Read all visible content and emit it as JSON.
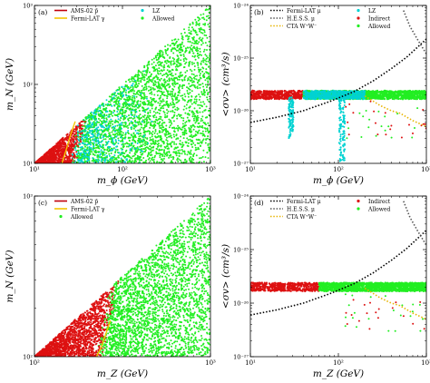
{
  "chart_data": [
    {
      "panel": "(a)",
      "type": "scatter",
      "xlabel": "m_ϕ (GeV)",
      "ylabel": "m_N (GeV)",
      "xscale": "log",
      "yscale": "log",
      "xlim": [
        10,
        1000
      ],
      "ylim": [
        10,
        1000
      ],
      "x_ticks": [
        {
          "v": 10,
          "label": "10¹"
        },
        {
          "v": 100,
          "label": "10²"
        },
        {
          "v": 1000,
          "label": "10³"
        }
      ],
      "y_ticks": [
        {
          "v": 10,
          "label": "10¹"
        },
        {
          "v": 100,
          "label": "10²"
        },
        {
          "v": 1000,
          "label": "10³"
        }
      ],
      "legend": {
        "placement": "top-left",
        "columns": 2
      },
      "series": [
        {
          "name": "AMS-02 p̄",
          "kind": "line",
          "color": "#c0000a",
          "x": [],
          "y": []
        },
        {
          "name": "Fermi-LAT γ",
          "kind": "line",
          "color": "#f5c400",
          "x": [
            20.5,
            23.0,
            26.0,
            29.0
          ],
          "y": [
            10.0,
            15.0,
            24.0,
            34.0
          ]
        },
        {
          "name": "LZ",
          "kind": "scatter",
          "color": "#00d2d2",
          "x": [],
          "y": []
        },
        {
          "name": "Allowed",
          "kind": "scatter",
          "color": "#22ee22",
          "x": [],
          "y": []
        }
      ],
      "regions": [
        {
          "series": "Indirect excluded (red points)",
          "color": "#dd1111",
          "x_range": [
            10,
            32
          ],
          "condition": "m_N < m_phi"
        },
        {
          "series": "LZ",
          "color": "#00d2d2",
          "x_range": [
            32,
            230
          ],
          "condition": "m_N < m_phi",
          "mixed_with": "Allowed"
        },
        {
          "series": "Allowed",
          "color": "#22ee22",
          "x_range": [
            25,
            1000
          ],
          "condition": "m_N < m_phi"
        }
      ]
    },
    {
      "panel": "(b)",
      "type": "scatter",
      "xlabel": "m_ϕ (GeV)",
      "ylabel": "<σv> (cm³/s)",
      "xscale": "log",
      "yscale": "log",
      "xlim": [
        10,
        1000
      ],
      "ylim": [
        1e-27,
        1e-24
      ],
      "x_ticks": [
        {
          "v": 10,
          "label": "10¹"
        },
        {
          "v": 100,
          "label": "10²"
        },
        {
          "v": 1000,
          "label": "10³"
        }
      ],
      "y_ticks": [
        {
          "v": 1e-24,
          "label": "10⁻²⁴"
        },
        {
          "v": 1e-25,
          "label": "10⁻²⁵"
        },
        {
          "v": 1e-26,
          "label": "10⁻²⁶"
        },
        {
          "v": 1e-27,
          "label": "10⁻²⁷"
        }
      ],
      "legend": {
        "placement": "top-left",
        "columns": 2
      },
      "series": [
        {
          "name": "Fermi-LAT μ",
          "kind": "line",
          "style": "dotted",
          "color": "#000000",
          "x": [
            10,
            20,
            40,
            80,
            150,
            250,
            400,
            600,
            1000
          ],
          "y": [
            6e-27,
            7.5e-27,
            1e-26,
            1.5e-26,
            2.3e-26,
            3.7e-26,
            6.3e-26,
            1.05e-25,
            2.3e-25
          ]
        },
        {
          "name": "H.E.S.S. μ",
          "kind": "line",
          "style": "dotted",
          "color": "#555555",
          "x": [
            550,
            650,
            800,
            1000
          ],
          "y": [
            8e-25,
            4e-25,
            2.2e-25,
            1.2e-25
          ]
        },
        {
          "name": "CTA W⁺W⁻",
          "kind": "line",
          "style": "dotted",
          "color": "#e8b400",
          "x": [
            200,
            300,
            400,
            500,
            700,
            1000
          ],
          "y": [
            1.9e-26,
            1.25e-26,
            1e-26,
            9e-27,
            6.5e-27,
            5e-27
          ]
        },
        {
          "name": "LZ",
          "kind": "scatter",
          "color": "#00d2d2",
          "x": [],
          "y": []
        },
        {
          "name": "Indirect",
          "kind": "scatter",
          "color": "#dd1111",
          "x": [],
          "y": []
        },
        {
          "name": "Allowed",
          "kind": "scatter",
          "color": "#22ee22",
          "x": [],
          "y": []
        }
      ],
      "bands": [
        {
          "series": "Indirect",
          "color": "#dd1111",
          "x_range": [
            10,
            40
          ],
          "y_center": 2e-26
        },
        {
          "series": "Allowed",
          "color": "#22ee22",
          "x_range": [
            40,
            1000
          ],
          "y_center": 2e-26
        },
        {
          "series": "LZ",
          "color": "#00d2d2",
          "x_range": [
            40,
            200
          ],
          "y_center": 2e-26
        }
      ],
      "spikes": [
        {
          "series": "LZ",
          "color": "#00d2d2",
          "x": 28.0,
          "y_min": 3e-27
        },
        {
          "series": "LZ",
          "color": "#00d2d2",
          "x": 30.0,
          "y_min": 4e-27
        },
        {
          "series": "LZ",
          "color": "#00d2d2",
          "x": 105.0,
          "y_min": 1.1e-27
        },
        {
          "series": "LZ",
          "color": "#00d2d2",
          "x": 115.0,
          "y_min": 1.1e-27
        }
      ]
    },
    {
      "panel": "(c)",
      "type": "scatter",
      "xlabel": "m_Z (GeV)",
      "ylabel": "m_N (GeV)",
      "xscale": "log",
      "yscale": "log",
      "xlim": [
        100,
        1000
      ],
      "ylim": [
        100,
        1000
      ],
      "x_ticks": [
        {
          "v": 100,
          "label": "10²"
        },
        {
          "v": 1000,
          "label": "10³"
        }
      ],
      "y_ticks": [
        {
          "v": 100,
          "label": "10²"
        },
        {
          "v": 1000,
          "label": "10³"
        }
      ],
      "legend": {
        "placement": "top-left",
        "columns": 1
      },
      "series": [
        {
          "name": "AMS-02 p̄",
          "kind": "line",
          "color": "#c0000a",
          "x": [],
          "y": []
        },
        {
          "name": "Fermi-LAT γ",
          "kind": "line",
          "color": "#f5c400",
          "x": [
            225,
            240,
            255,
            270
          ],
          "y": [
            100,
            115,
            140,
            168
          ]
        },
        {
          "name": "Allowed",
          "kind": "scatter",
          "color": "#22ee22",
          "x": [],
          "y": []
        }
      ],
      "regions": [
        {
          "series": "Indirect excluded (red points)",
          "color": "#dd1111",
          "x_range": [
            100,
            260
          ],
          "condition": "m_N < m_Z"
        },
        {
          "series": "Allowed",
          "color": "#22ee22",
          "x_range": [
            230,
            1000
          ],
          "condition": "m_N < m_Z"
        }
      ]
    },
    {
      "panel": "(d)",
      "type": "scatter",
      "xlabel": "m_Z (GeV)",
      "ylabel": "<σv> (cm³/s)",
      "xscale": "log",
      "yscale": "log",
      "xlim": [
        10,
        1000
      ],
      "ylim": [
        1e-27,
        1e-24
      ],
      "x_ticks": [
        {
          "v": 10,
          "label": "10¹"
        },
        {
          "v": 100,
          "label": "10²"
        },
        {
          "v": 1000,
          "label": "10³"
        }
      ],
      "y_ticks": [
        {
          "v": 1e-24,
          "label": "10⁻²⁴"
        },
        {
          "v": 1e-25,
          "label": "10⁻²⁵"
        },
        {
          "v": 1e-26,
          "label": "10⁻²⁶"
        },
        {
          "v": 1e-27,
          "label": "10⁻²⁷"
        }
      ],
      "legend": {
        "placement": "top-left",
        "columns": 2
      },
      "series": [
        {
          "name": "Fermi-LAT μ",
          "kind": "line",
          "style": "dotted",
          "color": "#000000",
          "x": [
            10,
            20,
            40,
            80,
            150,
            250,
            400,
            600,
            1000
          ],
          "y": [
            6e-27,
            7.5e-27,
            1e-26,
            1.5e-26,
            2.3e-26,
            3.7e-26,
            6.3e-26,
            1.05e-25,
            2.3e-25
          ]
        },
        {
          "name": "H.E.S.S. μ",
          "kind": "line",
          "style": "dotted",
          "color": "#555555",
          "x": [
            550,
            650,
            800,
            1000
          ],
          "y": [
            8e-25,
            4e-25,
            2.2e-25,
            1.2e-25
          ]
        },
        {
          "name": "CTA W⁺W⁻",
          "kind": "line",
          "style": "dotted",
          "color": "#e8b400",
          "x": [
            200,
            300,
            400,
            500,
            700,
            1000
          ],
          "y": [
            1.9e-26,
            1.25e-26,
            1e-26,
            9e-27,
            6.5e-27,
            5e-27
          ]
        },
        {
          "name": "Indirect",
          "kind": "scatter",
          "color": "#dd1111",
          "x": [],
          "y": []
        },
        {
          "name": "Allowed",
          "kind": "scatter",
          "color": "#22ee22",
          "x": [],
          "y": []
        }
      ],
      "bands": [
        {
          "series": "Indirect",
          "color": "#dd1111",
          "x_range": [
            10,
            60
          ],
          "y_center": 2e-26
        },
        {
          "series": "Allowed",
          "color": "#22ee22",
          "x_range": [
            60,
            1000
          ],
          "y_center": 2e-26
        }
      ]
    }
  ]
}
